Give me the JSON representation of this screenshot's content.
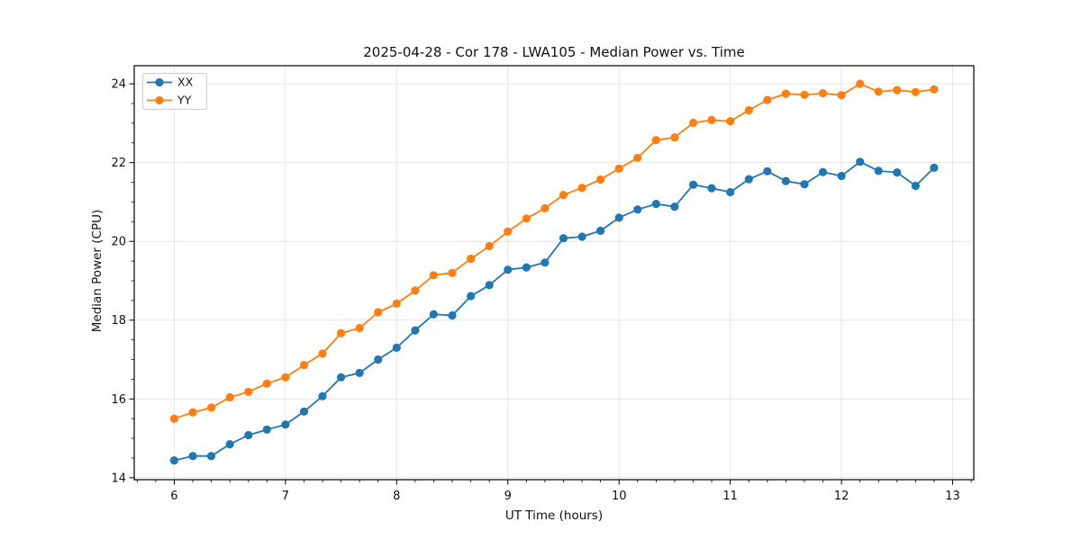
{
  "figure": {
    "background": "#ffffff",
    "plot_background": "#ffffff",
    "border_color": "#000000",
    "text_color": "#111111"
  },
  "chart_data": {
    "type": "line",
    "title": "2025-04-28 - Cor 178 - LWA105 - Median Power vs. Time",
    "xlabel": "UT Time (hours)",
    "ylabel": "Median Power (CPU)",
    "xlim": [
      5.64,
      13.19
    ],
    "ylim": [
      13.95,
      24.46
    ],
    "x_ticks": [
      6,
      7,
      8,
      9,
      10,
      11,
      12,
      13
    ],
    "y_ticks": [
      14,
      16,
      18,
      20,
      22,
      24
    ],
    "x_minor_step": 0.16667,
    "y_minor_step": 0.5,
    "grid": "major",
    "grid_color": "#e6e6e6",
    "legend": {
      "position": "upper-left",
      "entries": [
        "XX",
        "YY"
      ]
    },
    "x": [
      6.0,
      6.167,
      6.333,
      6.5,
      6.667,
      6.833,
      7.0,
      7.167,
      7.333,
      7.5,
      7.667,
      7.833,
      8.0,
      8.167,
      8.333,
      8.5,
      8.667,
      8.833,
      9.0,
      9.167,
      9.333,
      9.5,
      9.667,
      9.833,
      10.0,
      10.167,
      10.333,
      10.5,
      10.667,
      10.833,
      11.0,
      11.167,
      11.333,
      11.5,
      11.667,
      11.833,
      12.0,
      12.167,
      12.333,
      12.5,
      12.667,
      12.833
    ],
    "series": [
      {
        "name": "XX",
        "color": "#1f77b4",
        "marker": "circle",
        "values": [
          14.44,
          14.55,
          14.55,
          14.85,
          15.08,
          15.22,
          15.35,
          15.68,
          16.07,
          16.55,
          16.66,
          17.0,
          17.3,
          17.74,
          18.15,
          18.12,
          18.61,
          18.89,
          19.28,
          19.34,
          19.46,
          20.08,
          20.12,
          20.27,
          20.6,
          20.81,
          20.95,
          20.88,
          21.44,
          21.35,
          21.25,
          21.58,
          21.78,
          21.53,
          21.45,
          21.76,
          21.66,
          22.02,
          21.79,
          21.75,
          21.41,
          21.87
        ]
      },
      {
        "name": "YY",
        "color": "#ff7f0e",
        "marker": "circle",
        "values": [
          15.5,
          15.66,
          15.78,
          16.04,
          16.18,
          16.39,
          16.55,
          16.86,
          17.15,
          17.67,
          17.8,
          18.2,
          18.42,
          18.75,
          19.14,
          19.2,
          19.56,
          19.88,
          20.25,
          20.58,
          20.84,
          21.18,
          21.36,
          21.57,
          21.85,
          22.12,
          22.57,
          22.64,
          23.01,
          23.08,
          23.05,
          23.33,
          23.59,
          23.75,
          23.72,
          23.76,
          23.71,
          24.0,
          23.8,
          23.84,
          23.79,
          23.86
        ]
      }
    ]
  }
}
